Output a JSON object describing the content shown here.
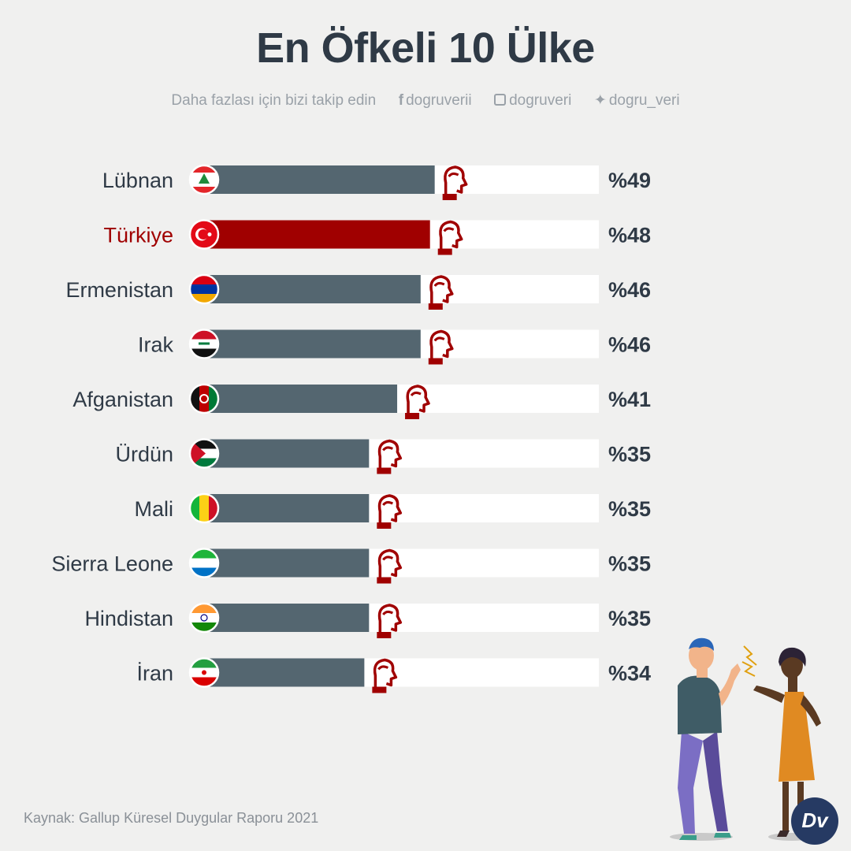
{
  "title": "En Öfkeli 10 Ülke",
  "follow": {
    "text": "Daha fazlası için bizi takip edin",
    "facebook": "dogruverii",
    "instagram": "dogruveri",
    "twitter": "dogru_veri"
  },
  "source": "Kaynak: Gallup Küresel Duygular Raporu 2021",
  "logo_text": "Dv",
  "colors": {
    "bar_default": "#546670",
    "bar_highlight": "#a00000",
    "track": "#ffffff",
    "label_default": "#2f3a46",
    "label_highlight": "#a00000",
    "icon": "#a00000"
  },
  "chart_data": {
    "type": "bar",
    "orientation": "horizontal",
    "categories": [
      "Lübnan",
      "Türkiye",
      "Ermenistan",
      "Irak",
      "Afganistan",
      "Ürdün",
      "Mali",
      "Sierra Leone",
      "Hindistan",
      "İran"
    ],
    "values": [
      49,
      48,
      46,
      46,
      41,
      35,
      35,
      35,
      35,
      34
    ],
    "value_labels": [
      "%49",
      "%48",
      "%46",
      "%46",
      "%41",
      "%35",
      "%35",
      "%35",
      "%35",
      "%34"
    ],
    "highlight": "Türkiye",
    "xlim": [
      0,
      84
    ],
    "flags": [
      "lebanon-flag-icon",
      "turkey-flag-icon",
      "armenia-flag-icon",
      "iraq-flag-icon",
      "afghanistan-flag-icon",
      "jordan-flag-icon",
      "mali-flag-icon",
      "sierra-leone-flag-icon",
      "india-flag-icon",
      "iran-flag-icon"
    ],
    "marker_icon": "angry-head-icon"
  }
}
